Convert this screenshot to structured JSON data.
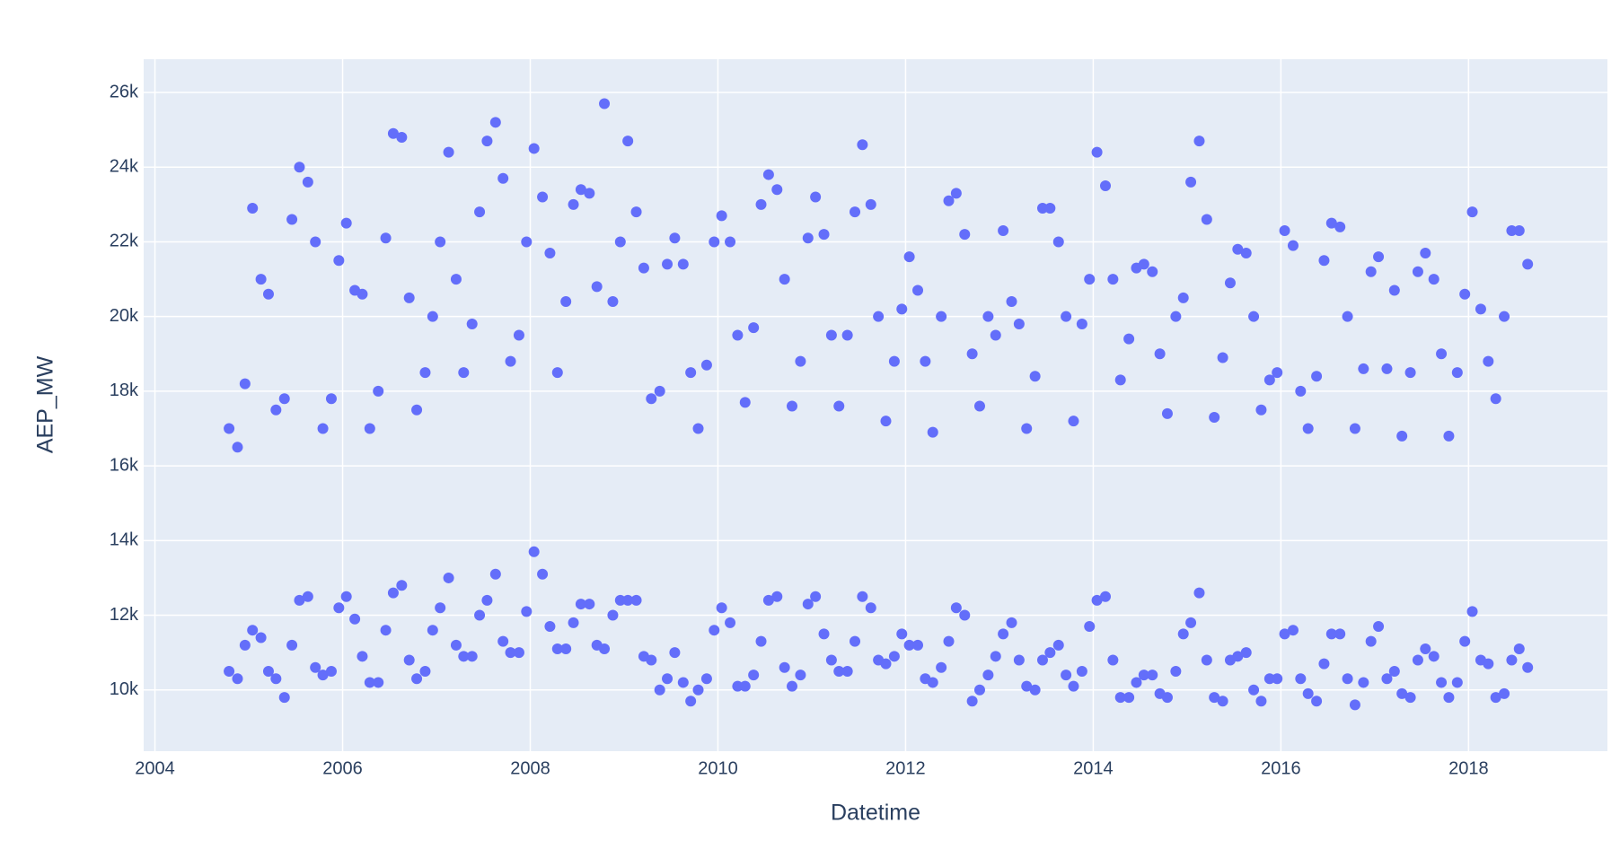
{
  "chart_data": {
    "type": "scatter",
    "x_label": "Datetime",
    "y_label": "AEP_MW",
    "color": "#636efa",
    "grid": true,
    "xlim": [
      2003.88,
      2019.48
    ],
    "ylim": [
      8360,
      26890
    ],
    "xticks": [
      2004,
      2006,
      2008,
      2010,
      2012,
      2014,
      2016,
      2018
    ],
    "yticks": [
      {
        "value": 10000,
        "label": "10k"
      },
      {
        "value": 12000,
        "label": "12k"
      },
      {
        "value": 14000,
        "label": "14k"
      },
      {
        "value": 16000,
        "label": "16k"
      },
      {
        "value": 18000,
        "label": "18k"
      },
      {
        "value": 20000,
        "label": "20k"
      },
      {
        "value": 22000,
        "label": "22k"
      },
      {
        "value": 24000,
        "label": "24k"
      },
      {
        "value": 26000,
        "label": "26k"
      }
    ],
    "x": [
      2004.79,
      2004.79,
      2004.88,
      2004.88,
      2004.96,
      2004.96,
      2005.04,
      2005.04,
      2005.13,
      2005.13,
      2005.21,
      2005.21,
      2005.29,
      2005.29,
      2005.38,
      2005.38,
      2005.46,
      2005.46,
      2005.54,
      2005.54,
      2005.63,
      2005.63,
      2005.71,
      2005.71,
      2005.79,
      2005.79,
      2005.88,
      2005.88,
      2005.96,
      2005.96,
      2006.04,
      2006.04,
      2006.13,
      2006.13,
      2006.21,
      2006.21,
      2006.29,
      2006.29,
      2006.38,
      2006.38,
      2006.46,
      2006.46,
      2006.54,
      2006.54,
      2006.63,
      2006.63,
      2006.71,
      2006.71,
      2006.79,
      2006.79,
      2006.88,
      2006.88,
      2006.96,
      2006.96,
      2007.04,
      2007.04,
      2007.13,
      2007.13,
      2007.21,
      2007.21,
      2007.29,
      2007.29,
      2007.38,
      2007.38,
      2007.46,
      2007.46,
      2007.54,
      2007.54,
      2007.63,
      2007.63,
      2007.71,
      2007.71,
      2007.79,
      2007.79,
      2007.88,
      2007.88,
      2007.96,
      2007.96,
      2008.04,
      2008.04,
      2008.13,
      2008.13,
      2008.21,
      2008.21,
      2008.29,
      2008.29,
      2008.38,
      2008.38,
      2008.46,
      2008.46,
      2008.54,
      2008.54,
      2008.63,
      2008.63,
      2008.71,
      2008.71,
      2008.79,
      2008.79,
      2008.88,
      2008.88,
      2008.96,
      2008.96,
      2009.04,
      2009.04,
      2009.13,
      2009.13,
      2009.21,
      2009.21,
      2009.29,
      2009.29,
      2009.38,
      2009.38,
      2009.46,
      2009.46,
      2009.54,
      2009.54,
      2009.63,
      2009.63,
      2009.71,
      2009.71,
      2009.79,
      2009.79,
      2009.88,
      2009.88,
      2009.96,
      2009.96,
      2010.04,
      2010.04,
      2010.13,
      2010.13,
      2010.21,
      2010.21,
      2010.29,
      2010.29,
      2010.38,
      2010.38,
      2010.46,
      2010.46,
      2010.54,
      2010.54,
      2010.63,
      2010.63,
      2010.71,
      2010.71,
      2010.79,
      2010.79,
      2010.88,
      2010.88,
      2010.96,
      2010.96,
      2011.04,
      2011.04,
      2011.13,
      2011.13,
      2011.21,
      2011.21,
      2011.29,
      2011.29,
      2011.38,
      2011.38,
      2011.46,
      2011.46,
      2011.54,
      2011.54,
      2011.63,
      2011.63,
      2011.71,
      2011.71,
      2011.79,
      2011.79,
      2011.88,
      2011.88,
      2011.96,
      2011.96,
      2012.04,
      2012.04,
      2012.13,
      2012.13,
      2012.21,
      2012.21,
      2012.29,
      2012.29,
      2012.38,
      2012.38,
      2012.46,
      2012.46,
      2012.54,
      2012.54,
      2012.63,
      2012.63,
      2012.71,
      2012.71,
      2012.79,
      2012.79,
      2012.88,
      2012.88,
      2012.96,
      2012.96,
      2013.04,
      2013.04,
      2013.13,
      2013.13,
      2013.21,
      2013.21,
      2013.29,
      2013.29,
      2013.38,
      2013.38,
      2013.46,
      2013.46,
      2013.54,
      2013.54,
      2013.63,
      2013.63,
      2013.71,
      2013.71,
      2013.79,
      2013.79,
      2013.88,
      2013.88,
      2013.96,
      2013.96,
      2014.04,
      2014.04,
      2014.13,
      2014.13,
      2014.21,
      2014.21,
      2014.29,
      2014.29,
      2014.38,
      2014.38,
      2014.46,
      2014.46,
      2014.54,
      2014.54,
      2014.63,
      2014.63,
      2014.71,
      2014.71,
      2014.79,
      2014.79,
      2014.88,
      2014.88,
      2014.96,
      2014.96,
      2015.04,
      2015.04,
      2015.13,
      2015.13,
      2015.21,
      2015.21,
      2015.29,
      2015.29,
      2015.38,
      2015.38,
      2015.46,
      2015.46,
      2015.54,
      2015.54,
      2015.63,
      2015.63,
      2015.71,
      2015.71,
      2015.79,
      2015.79,
      2015.88,
      2015.88,
      2015.96,
      2015.96,
      2016.04,
      2016.04,
      2016.13,
      2016.13,
      2016.21,
      2016.21,
      2016.29,
      2016.29,
      2016.38,
      2016.38,
      2016.46,
      2016.46,
      2016.54,
      2016.54,
      2016.63,
      2016.63,
      2016.71,
      2016.71,
      2016.79,
      2016.79,
      2016.88,
      2016.88,
      2016.96,
      2016.96,
      2017.04,
      2017.04,
      2017.13,
      2017.13,
      2017.21,
      2017.21,
      2017.29,
      2017.29,
      2017.38,
      2017.38,
      2017.46,
      2017.46,
      2017.54,
      2017.54,
      2017.63,
      2017.63,
      2017.71,
      2017.71,
      2017.79,
      2017.79,
      2017.88,
      2017.88,
      2017.96,
      2017.96,
      2018.04,
      2018.04,
      2018.13,
      2018.13,
      2018.21,
      2018.21,
      2018.29,
      2018.29,
      2018.38,
      2018.38,
      2018.46,
      2018.46,
      2018.54,
      2018.54,
      2018.63,
      2018.63
    ],
    "y": [
      17000,
      10500,
      16500,
      10300,
      18200,
      11200,
      22900,
      11600,
      21000,
      11400,
      20600,
      10500,
      17500,
      10300,
      17800,
      9800,
      22600,
      11200,
      24000,
      12400,
      23600,
      12500,
      22000,
      10600,
      17000,
      10400,
      17800,
      10500,
      21500,
      12200,
      22500,
      12500,
      20700,
      11900,
      20600,
      10900,
      17000,
      10200,
      18000,
      10200,
      22100,
      11600,
      24900,
      12600,
      24800,
      12800,
      20500,
      10800,
      17500,
      10300,
      18500,
      10500,
      20000,
      11600,
      22000,
      12200,
      24400,
      13000,
      21000,
      11200,
      18500,
      10900,
      19800,
      10900,
      22800,
      12000,
      24700,
      12400,
      25200,
      13100,
      23700,
      11300,
      18800,
      11000,
      19500,
      11000,
      22000,
      12100,
      24500,
      13700,
      23200,
      13100,
      21700,
      11700,
      18500,
      11100,
      20400,
      11100,
      23000,
      11800,
      23400,
      12300,
      23300,
      12300,
      20800,
      11200,
      25700,
      11100,
      20400,
      12000,
      22000,
      12400,
      24700,
      12400,
      22800,
      12400,
      21300,
      10900,
      17800,
      10800,
      18000,
      10000,
      21400,
      10300,
      22100,
      11000,
      21400,
      10200,
      18500,
      9700,
      17000,
      10000,
      18700,
      10300,
      22000,
      11600,
      22700,
      12200,
      22000,
      11800,
      19500,
      10100,
      17700,
      10100,
      19700,
      10400,
      23000,
      11300,
      23800,
      12400,
      23400,
      12500,
      21000,
      10600,
      17600,
      10100,
      18800,
      10400,
      22100,
      12300,
      23200,
      12500,
      22200,
      11500,
      19500,
      10800,
      17600,
      10500,
      19500,
      10500,
      22800,
      11300,
      24600,
      12500,
      23000,
      12200,
      20000,
      10800,
      17200,
      10700,
      18800,
      10900,
      20200,
      11500,
      21600,
      11200,
      20700,
      11200,
      18800,
      10300,
      16900,
      10200,
      20000,
      10600,
      23100,
      11300,
      23300,
      12200,
      22200,
      12000,
      19000,
      9700,
      17600,
      10000,
      20000,
      10400,
      19500,
      10900,
      22300,
      11500,
      20400,
      11800,
      19800,
      10800,
      17000,
      10100,
      18400,
      10000,
      22900,
      10800,
      22900,
      11000,
      22000,
      11200,
      20000,
      10400,
      17200,
      10100,
      19800,
      10500,
      21000,
      11700,
      24400,
      12400,
      23500,
      12500,
      21000,
      10800,
      18300,
      9800,
      19400,
      9800,
      21300,
      10200,
      21400,
      10400,
      21200,
      10400,
      19000,
      9900,
      17400,
      9800,
      20000,
      10500,
      20500,
      11500,
      23600,
      11800,
      24700,
      12600,
      22600,
      10800,
      17300,
      9800,
      18900,
      9700,
      20900,
      10800,
      21800,
      10900,
      21700,
      11000,
      20000,
      10000,
      17500,
      9700,
      18300,
      10300,
      18500,
      10300,
      22300,
      11500,
      21900,
      11600,
      18000,
      10300,
      17000,
      9900,
      18400,
      9700,
      21500,
      10700,
      22500,
      11500,
      22400,
      11500,
      20000,
      10300,
      17000,
      9600,
      18600,
      10200,
      21200,
      11300,
      21600,
      11700,
      18600,
      10300,
      20700,
      10500,
      16800,
      9900,
      18500,
      9800,
      21200,
      10800,
      21700,
      11100,
      21000,
      10900,
      19000,
      10200,
      16800,
      9800,
      18500,
      10200,
      20600,
      11300,
      22800,
      12100,
      20200,
      10800,
      18800,
      10700,
      17800,
      9800,
      20000,
      9900,
      22300,
      10800,
      22300,
      11100,
      21400,
      10600
    ]
  }
}
